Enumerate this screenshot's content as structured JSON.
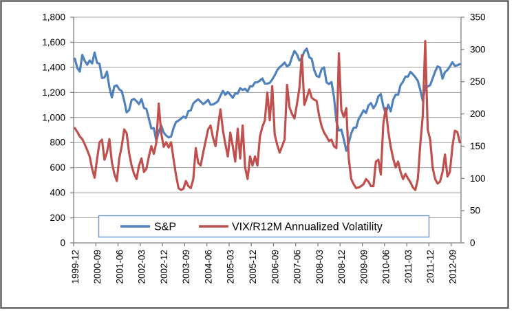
{
  "chart_data": {
    "type": "line",
    "title": "",
    "x_frequency": "monthly",
    "x_start": "1999-12",
    "x_end": "2012-12",
    "x_tick_labels": [
      "1999-12",
      "2000-09",
      "2001-06",
      "2002-03",
      "2002-12",
      "2003-09",
      "2004-06",
      "2005-03",
      "2005-12",
      "2006-09",
      "2007-06",
      "2008-03",
      "2008-12",
      "2009-09",
      "2010-06",
      "2011-03",
      "2011-12",
      "2012-09"
    ],
    "x_tick_every_n_months": 9,
    "left_axis": {
      "min": 0,
      "max": 1800,
      "step": 200,
      "tick_labels": [
        "0",
        "200",
        "400",
        "600",
        "800",
        "1,000",
        "1,200",
        "1,400",
        "1,600",
        "1,800"
      ]
    },
    "right_axis": {
      "min": 0,
      "max": 350,
      "step": 50,
      "tick_labels": [
        "0",
        "50",
        "100",
        "150",
        "200",
        "250",
        "300",
        "350"
      ]
    },
    "grid": true,
    "legend_position": "bottom-center-inside",
    "series": [
      {
        "name": "S&P",
        "axis": "left",
        "color": "#4F81BD",
        "values": [
          1469,
          1394,
          1366,
          1499,
          1452,
          1421,
          1455,
          1431,
          1518,
          1436,
          1429,
          1315,
          1320,
          1366,
          1240,
          1160,
          1249,
          1256,
          1224,
          1211,
          1134,
          1041,
          1060,
          1139,
          1148,
          1130,
          1107,
          1147,
          1077,
          1067,
          990,
          912,
          916,
          815,
          886,
          936,
          880,
          856,
          841,
          848,
          917,
          964,
          975,
          990,
          1008,
          996,
          1051,
          1058,
          1112,
          1131,
          1145,
          1126,
          1107,
          1121,
          1141,
          1102,
          1104,
          1115,
          1130,
          1174,
          1212,
          1181,
          1204,
          1181,
          1157,
          1192,
          1191,
          1234,
          1220,
          1229,
          1207,
          1249,
          1248,
          1280,
          1281,
          1295,
          1311,
          1270,
          1270,
          1277,
          1304,
          1336,
          1378,
          1401,
          1418,
          1438,
          1407,
          1421,
          1482,
          1531,
          1503,
          1455,
          1474,
          1527,
          1549,
          1481,
          1468,
          1379,
          1331,
          1323,
          1386,
          1400,
          1280,
          1267,
          1283,
          1166,
          969,
          896,
          903,
          826,
          735,
          798,
          873,
          919,
          919,
          987,
          1021,
          1057,
          1036,
          1096,
          1115,
          1074,
          1104,
          1169,
          1187,
          1089,
          1031,
          1102,
          1049,
          1141,
          1183,
          1181,
          1258,
          1286,
          1327,
          1326,
          1364,
          1345,
          1321,
          1292,
          1219,
          1131,
          1253,
          1247,
          1258,
          1312,
          1366,
          1408,
          1398,
          1310,
          1362,
          1379,
          1407,
          1441,
          1412,
          1416,
          1426
        ]
      },
      {
        "name": "VIX/R12M Annualized Volatility",
        "axis": "right",
        "color": "#C0504D",
        "values": [
          178,
          172,
          165,
          161,
          153,
          144,
          134,
          115,
          101,
          130,
          156,
          160,
          129,
          140,
          161,
          125,
          107,
          96,
          131,
          150,
          176,
          170,
          139,
          120,
          107,
          99,
          120,
          131,
          110,
          115,
          134,
          150,
          138,
          155,
          216,
          170,
          149,
          156,
          148,
          156,
          130,
          105,
          85,
          82,
          84,
          96,
          88,
          85,
          99,
          147,
          124,
          120,
          140,
          158,
          176,
          182,
          163,
          150,
          180,
          207,
          175,
          153,
          134,
          171,
          150,
          126,
          177,
          131,
          182,
          117,
          99,
          134,
          120,
          134,
          120,
          165,
          180,
          190,
          233,
          190,
          243,
          168,
          152,
          140,
          150,
          160,
          245,
          210,
          200,
          193,
          215,
          240,
          291,
          214,
          225,
          238,
          225,
          222,
          220,
          197,
          181,
          171,
          165,
          158,
          160,
          150,
          147,
          294,
          206,
          195,
          209,
          131,
          99,
          91,
          85,
          86,
          88,
          91,
          99,
          95,
          88,
          88,
          126,
          129,
          106,
          184,
          209,
          174,
          149,
          131,
          117,
          126,
          110,
          99,
          107,
          100,
          94,
          86,
          82,
          99,
          153,
          197,
          313,
          176,
          160,
          117,
          99,
          92,
          95,
          110,
          137,
          103,
          110,
          149,
          174,
          172,
          156
        ]
      }
    ],
    "style": {
      "plot_background": "#ffffff",
      "gridline_color": "#9c9c9c",
      "axis_color": "#7f7f7f",
      "frame_color": "#5f5f5f",
      "legend_border_color": "#6f9bd1",
      "text_color": "#000000"
    }
  }
}
